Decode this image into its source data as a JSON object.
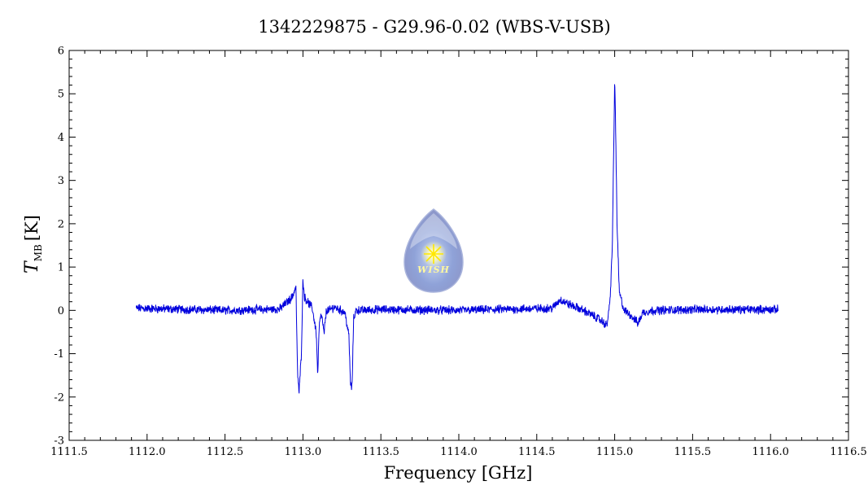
{
  "chart_data": {
    "type": "line",
    "title": "1342229875 - G29.96-0.02 (WBS-V-USB)",
    "xlabel": "Frequency [GHz]",
    "ylabel": "T",
    "ylabel_sub": "MB",
    "ylabel_unit": "[K]",
    "xlim": [
      1111.5,
      1116.5
    ],
    "ylim": [
      -3,
      6
    ],
    "xticks": [
      1111.5,
      1112.0,
      1112.5,
      1113.0,
      1113.5,
      1114.0,
      1114.5,
      1115.0,
      1115.5,
      1116.0,
      1116.5
    ],
    "xtick_labels": [
      "1111.5",
      "1112.0",
      "1112.5",
      "1113.0",
      "1113.5",
      "1114.0",
      "1114.5",
      "1115.0",
      "1115.5",
      "1116.0",
      "1116.5"
    ],
    "yticks": [
      -3,
      -2,
      -1,
      0,
      1,
      2,
      3,
      4,
      5,
      6
    ],
    "ytick_labels": [
      "-3",
      "-2",
      "-1",
      "0",
      "1",
      "2",
      "3",
      "4",
      "5",
      "6"
    ],
    "grid": false,
    "series_color": "#0000dd",
    "x_range": [
      1111.93,
      1116.05
    ],
    "series": [
      {
        "x": [
          1111.93,
          1112.5,
          1112.85,
          1112.93,
          1112.955,
          1112.965,
          1112.975,
          1112.99,
          1113.0,
          1113.01,
          1113.03,
          1113.06,
          1113.085,
          1113.095,
          1113.105,
          1113.12,
          1113.135,
          1113.15,
          1113.17,
          1113.2,
          1113.27,
          1113.295,
          1113.305,
          1113.315,
          1113.325,
          1113.34,
          1113.5,
          1114.0,
          1114.6,
          1114.65,
          1114.7,
          1114.8,
          1114.9,
          1114.95,
          1114.97,
          1114.985,
          1114.995,
          1115.0,
          1115.005,
          1115.015,
          1115.03,
          1115.06,
          1115.1,
          1115.15,
          1115.18,
          1115.25,
          1115.5,
          1116.05
        ],
        "y": [
          0.05,
          0.0,
          0.03,
          0.3,
          0.55,
          -1.4,
          -1.9,
          -1.0,
          0.72,
          0.3,
          0.2,
          0.05,
          -0.5,
          -1.5,
          -0.3,
          -0.1,
          -0.55,
          0.0,
          0.0,
          0.08,
          -0.05,
          -0.6,
          -1.7,
          -1.8,
          -0.2,
          0.0,
          0.02,
          0.0,
          0.05,
          0.25,
          0.15,
          0.0,
          -0.2,
          -0.35,
          0.2,
          1.5,
          4.0,
          5.35,
          4.5,
          2.0,
          0.4,
          0.0,
          -0.1,
          -0.3,
          -0.05,
          0.0,
          0.02,
          0.02
        ]
      }
    ]
  },
  "logo": {
    "text": "WISH"
  }
}
